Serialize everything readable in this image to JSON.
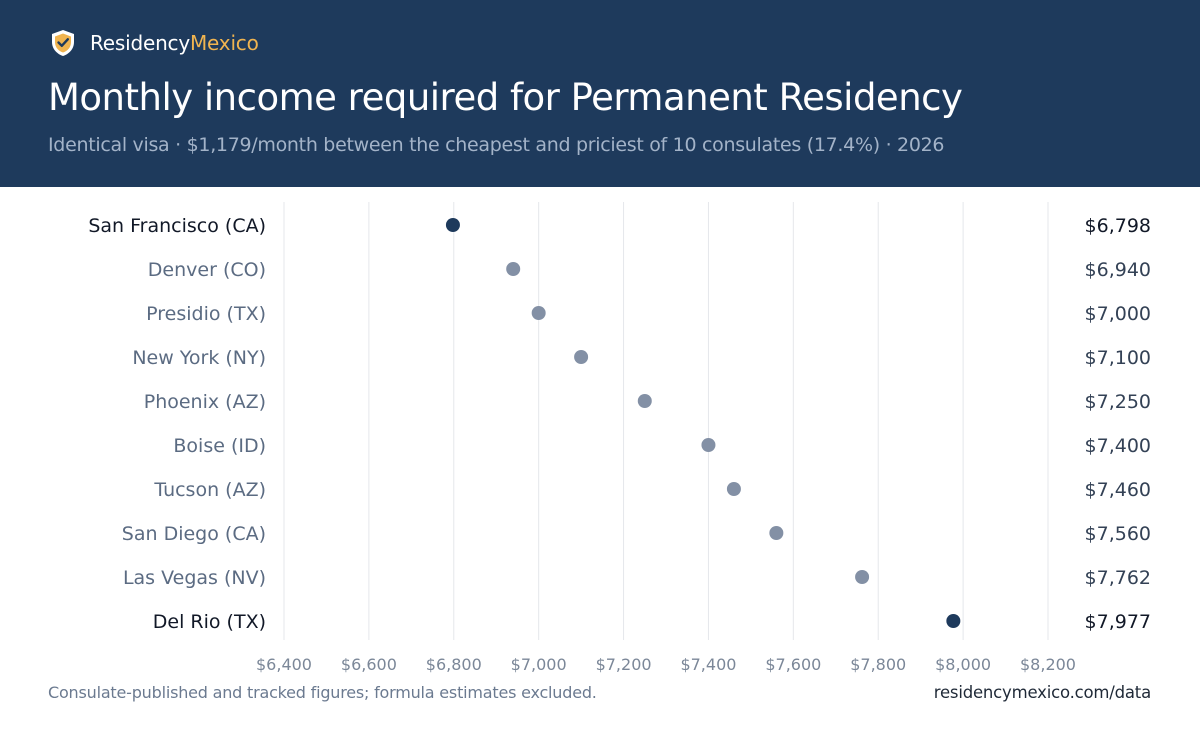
{
  "brand": {
    "name_main": "Residency",
    "name_accent": "Mexico",
    "icon": "shield-check-icon"
  },
  "title": "Monthly income required for Permanent Residency",
  "subtitle": "Identical visa · $1,179/month between the cheapest and priciest of 10 consulates (17.4%) · 2026",
  "footer": {
    "note": "Consulate-published and tracked figures; formula estimates excluded.",
    "source": "residencymexico.com/data"
  },
  "colors": {
    "header_bg": "#1e3a5c",
    "brand_accent": "#f0b450",
    "dot_highlight": "#1e3a5c",
    "dot_default": "#8390a5",
    "grid": "#e5e7eb"
  },
  "chart_data": {
    "type": "scatter",
    "orientation": "horizontal dot plot",
    "categories": [
      "San Francisco (CA)",
      "Denver (CO)",
      "Presidio (TX)",
      "New York (NY)",
      "Phoenix (AZ)",
      "Boise (ID)",
      "Tucson (AZ)",
      "San Diego (CA)",
      "Las Vegas (NV)",
      "Del Rio (TX)"
    ],
    "values": [
      6798,
      6940,
      7000,
      7100,
      7250,
      7400,
      7460,
      7560,
      7762,
      7977
    ],
    "value_labels": [
      "$6,798",
      "$6,940",
      "$7,000",
      "$7,100",
      "$7,250",
      "$7,400",
      "$7,460",
      "$7,560",
      "$7,762",
      "$7,977"
    ],
    "highlighted": [
      "San Francisco (CA)",
      "Del Rio (TX)"
    ],
    "xlim": [
      6400,
      8200
    ],
    "xticks": [
      6400,
      6600,
      6800,
      7000,
      7200,
      7400,
      7600,
      7800,
      8000,
      8200
    ],
    "xtick_labels": [
      "$6,400",
      "$6,600",
      "$6,800",
      "$7,000",
      "$7,200",
      "$7,400",
      "$7,600",
      "$7,800",
      "$8,000",
      "$8,200"
    ],
    "grid": true
  }
}
